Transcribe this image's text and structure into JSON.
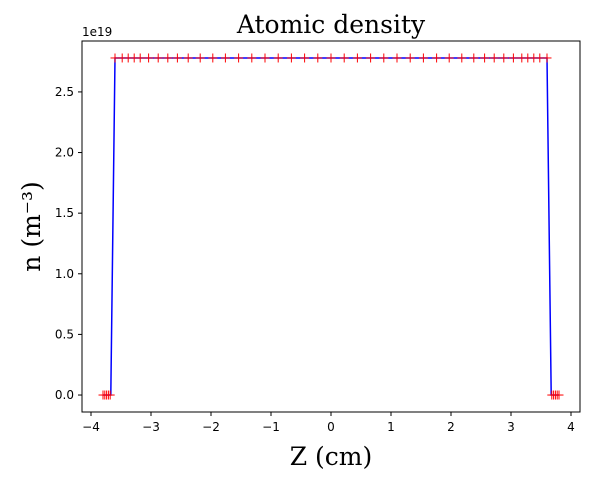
{
  "chart_data": {
    "type": "line",
    "title": "Atomic density",
    "xlabel": "Z (cm)",
    "ylabel": "n (m⁻³)",
    "y_offset_label": "1e19",
    "xlim": [
      -4.15,
      4.15
    ],
    "ylim": [
      -0.14,
      2.92
    ],
    "x_ticks": [
      -4,
      -3,
      -2,
      -1,
      0,
      1,
      2,
      3,
      4
    ],
    "x_tick_labels": [
      "−4",
      "−3",
      "−2",
      "−1",
      "0",
      "1",
      "2",
      "3",
      "4"
    ],
    "y_ticks": [
      0.0,
      0.5,
      1.0,
      1.5,
      2.0,
      2.5
    ],
    "y_tick_labels": [
      "0.0",
      "0.5",
      "1.0",
      "1.5",
      "2.0",
      "2.5"
    ],
    "grid": false,
    "series": [
      {
        "style": "line",
        "color": "#0000ff",
        "x": [
          -3.8,
          -3.76,
          -3.72,
          -3.67,
          -3.6,
          3.6,
          3.67,
          3.72,
          3.76,
          3.8
        ],
        "y": [
          0,
          0,
          0,
          0,
          2.78,
          2.78,
          0,
          0,
          0,
          0
        ]
      },
      {
        "style": "markers",
        "marker": "+",
        "color": "#ff0000",
        "x": [
          -3.8,
          -3.77,
          -3.74,
          -3.71,
          -3.68,
          -3.6,
          -3.48,
          -3.38,
          -3.28,
          -3.18,
          -3.04,
          -2.88,
          -2.72,
          -2.56,
          -2.38,
          -2.18,
          -1.97,
          -1.76,
          -1.54,
          -1.32,
          -1.1,
          -0.88,
          -0.66,
          -0.44,
          -0.22,
          0,
          0.22,
          0.44,
          0.66,
          0.88,
          1.1,
          1.32,
          1.54,
          1.76,
          1.97,
          2.18,
          2.38,
          2.56,
          2.72,
          2.88,
          3.04,
          3.18,
          3.28,
          3.38,
          3.48,
          3.6,
          3.68,
          3.71,
          3.74,
          3.77,
          3.8
        ],
        "y": [
          0,
          0,
          0,
          0,
          0,
          2.78,
          2.78,
          2.78,
          2.78,
          2.78,
          2.78,
          2.78,
          2.78,
          2.78,
          2.78,
          2.78,
          2.78,
          2.78,
          2.78,
          2.78,
          2.78,
          2.78,
          2.78,
          2.78,
          2.78,
          2.78,
          2.78,
          2.78,
          2.78,
          2.78,
          2.78,
          2.78,
          2.78,
          2.78,
          2.78,
          2.78,
          2.78,
          2.78,
          2.78,
          2.78,
          2.78,
          2.78,
          2.78,
          2.78,
          2.78,
          2.78,
          0,
          0,
          0,
          0,
          0
        ]
      }
    ]
  }
}
